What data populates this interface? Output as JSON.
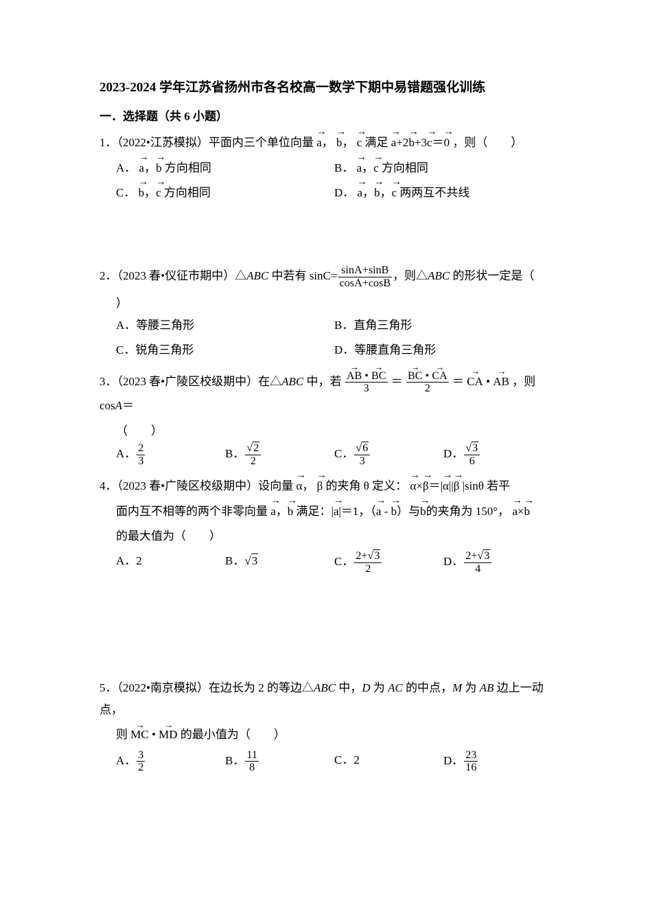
{
  "title": "2023-2024 学年江苏省扬州市各名校高一数学下期中易错题强化训练",
  "section1_head": "一．选择题（共 6 小题）",
  "q1": {
    "meta": "1．（2022•江苏模拟）平面内三个单位向量",
    "mid": "满足",
    "tail": "，则（　　）",
    "A_pre": "A．",
    "A_post": "方向相同",
    "B_pre": "B．",
    "B_post": "方向相同",
    "C_pre": "C．",
    "C_post": "方向相同",
    "D_pre": "D．",
    "D_post": "两两互不共线"
  },
  "q2": {
    "meta": "2．（2023 春•仪征市期中）△",
    "abc": "ABC",
    "mid1": " 中若有",
    "sinC": "sinC=",
    "fr_num": "sinA+sinB",
    "fr_den": "cosA+cosB",
    "mid2": "，则△",
    "tail": " 的形状一定是（",
    "close": "）",
    "A": "A．等腰三角形",
    "B": "B．直角三角形",
    "C": "C．锐角三角形",
    "D": "D．等腰直角三角形"
  },
  "q3": {
    "meta": "3．（2023 春•广陵区校级期中）在△",
    "abc": "ABC",
    "mid1": " 中，若 ",
    "eq": "＝",
    "tail1": "，则 cos",
    "Avar": "A",
    "tail2": "＝",
    "paren": "（　　）",
    "A_pre": "A．",
    "B_pre": "B．",
    "C_pre": "C．",
    "D_pre": "D．",
    "A_num": "2",
    "A_den": "3",
    "B_num_r": "2",
    "B_den": "2",
    "C_num_r": "6",
    "C_den": "3",
    "D_num_r": "3",
    "D_den": "6",
    "fr1_num_a": "AB",
    "fr1_num_b": "BC",
    "fr1_den": "3",
    "fr2_num_a": "BC",
    "fr2_num_b": "CA",
    "fr2_den": "2",
    "rt_a": "CA",
    "rt_b": "AB"
  },
  "q4": {
    "meta": "4．（2023 春•广陵区校级期中）设向量 ",
    "mid1": "的夹角 θ 定义：",
    "mid2": "|sinθ 若平",
    "line2a": "面内互不相等的两个非零向量",
    "line2b": "满足：|",
    "line2c": "|＝1，（",
    "line2d": "）与",
    "line2e": "的夹角为 150°，",
    "line3": "的最大值为（　　）",
    "A": "A．2",
    "B_pre": "B．",
    "B_r": "3",
    "C_pre": "C．",
    "C_num_pre": "2+",
    "C_num_r": "3",
    "C_den": "2",
    "D_pre": "D．",
    "D_num_pre": "2+",
    "D_num_r": "3",
    "D_den": "4"
  },
  "q5": {
    "meta": "5．（2022•南京模拟）在边长为 2 的等边△",
    "abc": "ABC",
    "mid1": " 中，",
    "D": "D",
    "mid2": " 为 ",
    "AC": "AC",
    "mid3": " 的中点，",
    "M": "M",
    "mid4": " 为 ",
    "AB": "AB",
    "mid5": " 边上一动点，",
    "line2_pre": "则",
    "line2_post": "的最小值为（　　）",
    "A_pre": "A．",
    "A_num": "3",
    "A_den": "2",
    "B_pre": "B．",
    "B_num": "11",
    "B_den": "8",
    "C": "C．2",
    "D_pre": "D．",
    "D_num": "23",
    "D_den": "16"
  }
}
